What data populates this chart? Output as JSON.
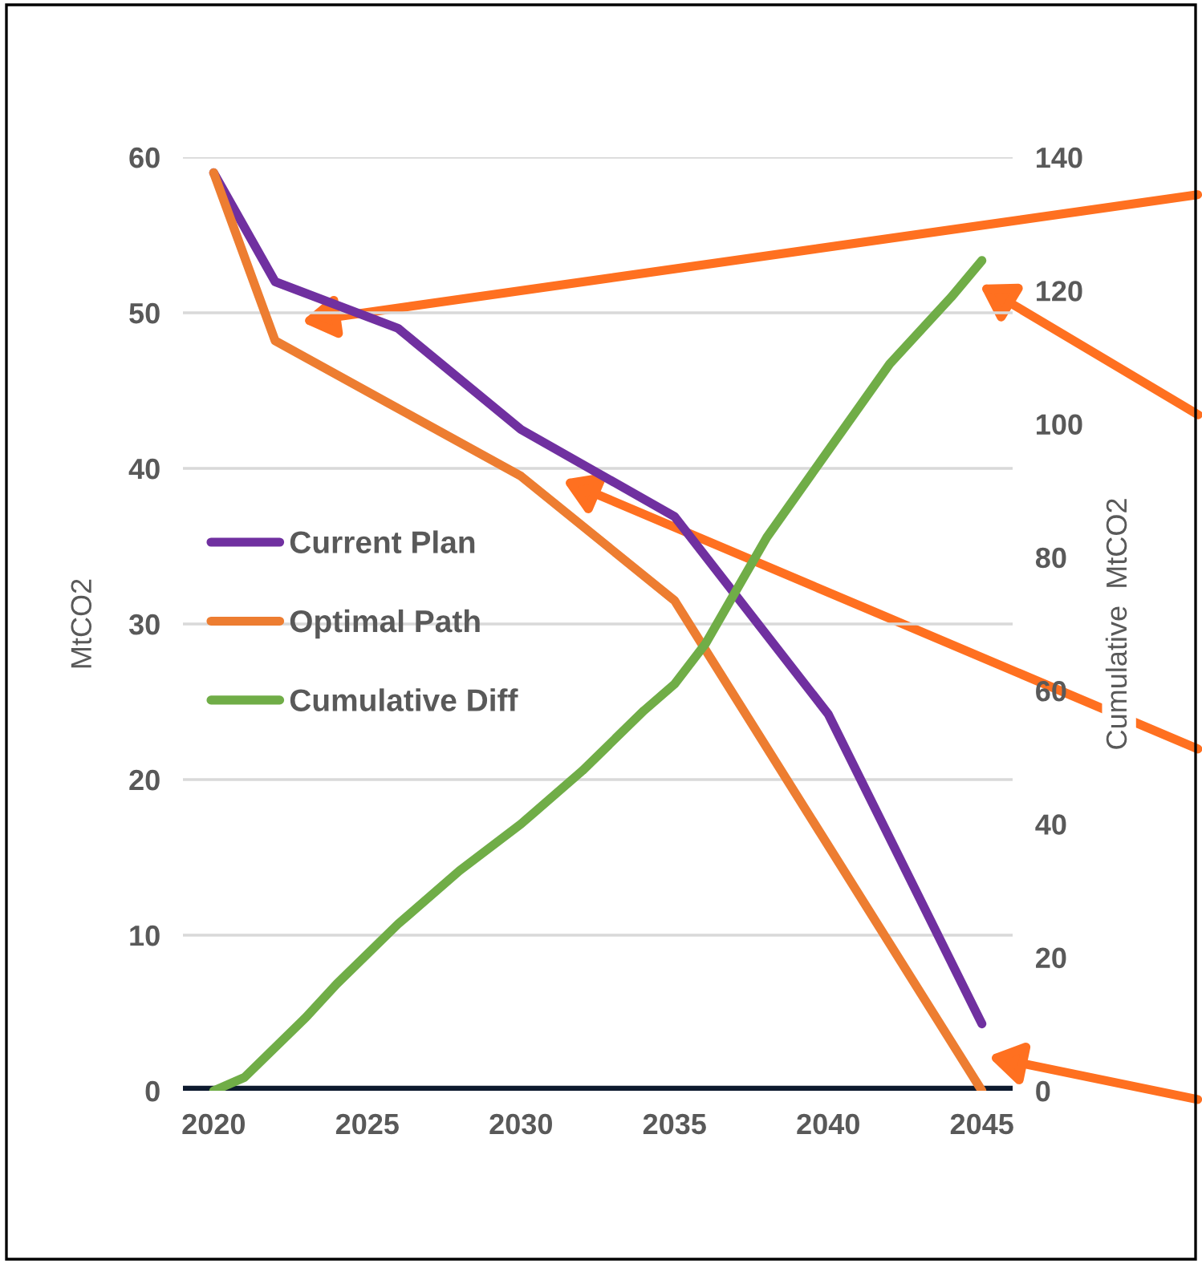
{
  "chart_data": {
    "type": "line",
    "ylabel": "MtCO2",
    "y2label": "Cumulative  MtCO2",
    "series": [
      {
        "name": "Current Plan",
        "color": "#7030a0",
        "x": [
          2020,
          2022,
          2026,
          2030,
          2035,
          2040,
          2045
        ],
        "values": [
          59,
          52,
          49,
          42.5,
          36.9,
          24.2,
          4.3
        ]
      },
      {
        "name": "Optimal Path",
        "color": "#ed7d31",
        "x": [
          2020,
          2022,
          2030,
          2035,
          2045
        ],
        "values": [
          59,
          48.2,
          39.5,
          31.5,
          0
        ]
      },
      {
        "name": "Cumulative Diff",
        "color": "#70ad47",
        "axis": "y2",
        "x": [
          2020,
          2021,
          2023,
          2024,
          2026,
          2028,
          2030,
          2032,
          2034,
          2035,
          2036,
          2038,
          2040,
          2042,
          2044,
          2045
        ],
        "values": [
          0,
          2,
          11,
          16,
          25,
          33,
          40,
          48,
          57,
          61,
          67,
          83,
          96,
          109,
          119,
          124.5
        ]
      }
    ],
    "xlim": [
      2019,
      2046
    ],
    "xticks": [
      2020,
      2025,
      2030,
      2035,
      2040,
      2045
    ],
    "ylim": [
      0,
      60
    ],
    "yticks": [
      0,
      10,
      20,
      30,
      40,
      50,
      60
    ],
    "y2lim": [
      0,
      140
    ],
    "y2ticks": [
      0,
      20,
      40,
      60,
      80,
      100,
      120,
      140
    ],
    "grid": "y",
    "legend": "left",
    "marker": "none",
    "line_style": "solid"
  }
}
